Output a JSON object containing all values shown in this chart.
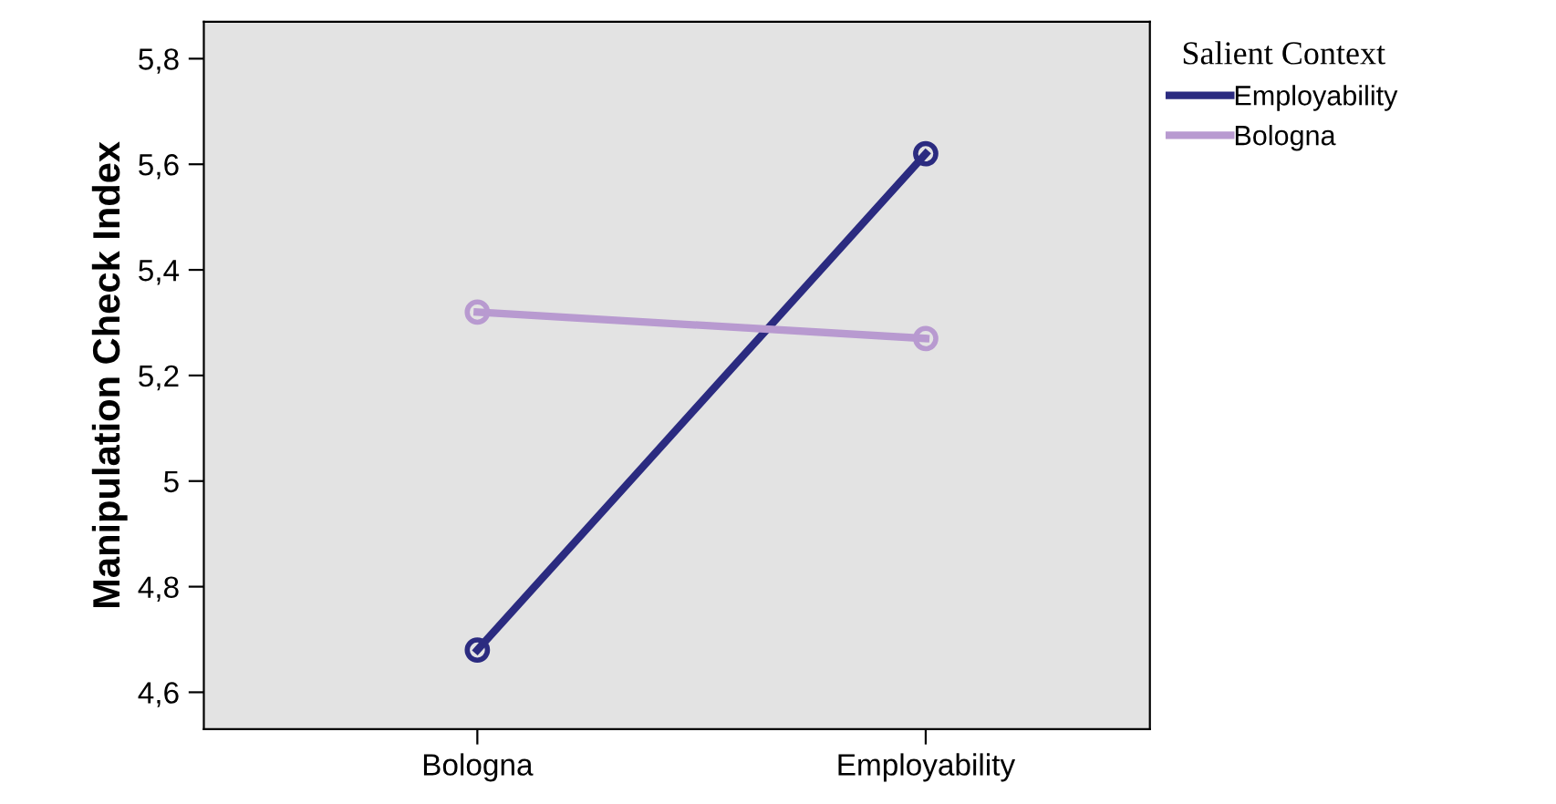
{
  "chart_data": {
    "type": "line",
    "ylabel": "Manipulation Check Index",
    "legend_title": "Salient Context",
    "categories": [
      "Bologna",
      "Employability"
    ],
    "series": [
      {
        "name": "Employability",
        "color": "#2b2b80",
        "values": [
          4.68,
          5.62
        ]
      },
      {
        "name": "Bologna",
        "color": "#b89ad0",
        "values": [
          5.32,
          5.27
        ]
      }
    ],
    "ylim": [
      4.53,
      5.87
    ],
    "yticks": [
      {
        "value": 4.6,
        "label": "4,6"
      },
      {
        "value": 4.8,
        "label": "4,8"
      },
      5,
      {
        "value": 5.2,
        "label": "5,2"
      },
      {
        "value": 5.4,
        "label": "5,4"
      },
      {
        "value": 5.6,
        "label": "5,6"
      },
      {
        "value": 5.8,
        "label": "5,8"
      }
    ],
    "marker": "circle",
    "line_style": "solid",
    "grid": false,
    "legend": "top right"
  }
}
